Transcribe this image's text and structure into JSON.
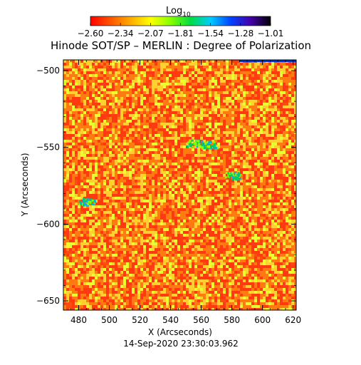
{
  "chart_data": {
    "type": "heatmap",
    "title": "Hinode SOT/SP – MERLIN : Degree of Polarization",
    "xlabel": "X (Arcseconds)",
    "ylabel": "Y (Arcseconds)",
    "timestamp": "14-Sep-2020 23:30:03.962",
    "xlim": [
      470,
      622
    ],
    "ylim": [
      -656,
      -493
    ],
    "x_ticks": [
      "480",
      "500",
      "520",
      "540",
      "560",
      "580",
      "600",
      "620"
    ],
    "y_ticks": [
      "−500",
      "−550",
      "−600",
      "−650"
    ],
    "colorbar": {
      "title": "Log10",
      "title_base": "Log",
      "title_sub": "10",
      "range": [
        -2.6,
        -1.01
      ],
      "tick_labels": [
        "−2.60",
        "−2.34",
        "−2.07",
        "−1.81",
        "−1.54",
        "−1.28",
        "−1.01"
      ],
      "colormap": [
        "#ff0000",
        "#ff5500",
        "#ffaa00",
        "#ffff00",
        "#88ff00",
        "#00dd44",
        "#00ccff",
        "#0044ff",
        "#4400aa",
        "#000000"
      ]
    },
    "image_summary": {
      "background_level": -2.55,
      "dominant_colors": [
        "#ff3a10",
        "#ff7a10",
        "#ffd030",
        "#e8ff30"
      ],
      "notable_features": [
        {
          "x": 565,
          "y": -548,
          "level": -1.6
        },
        {
          "x": 555,
          "y": -547,
          "level": -1.5
        },
        {
          "x": 485,
          "y": -585,
          "level": -1.6
        },
        {
          "x": 580,
          "y": -568,
          "level": -1.9
        }
      ]
    }
  }
}
